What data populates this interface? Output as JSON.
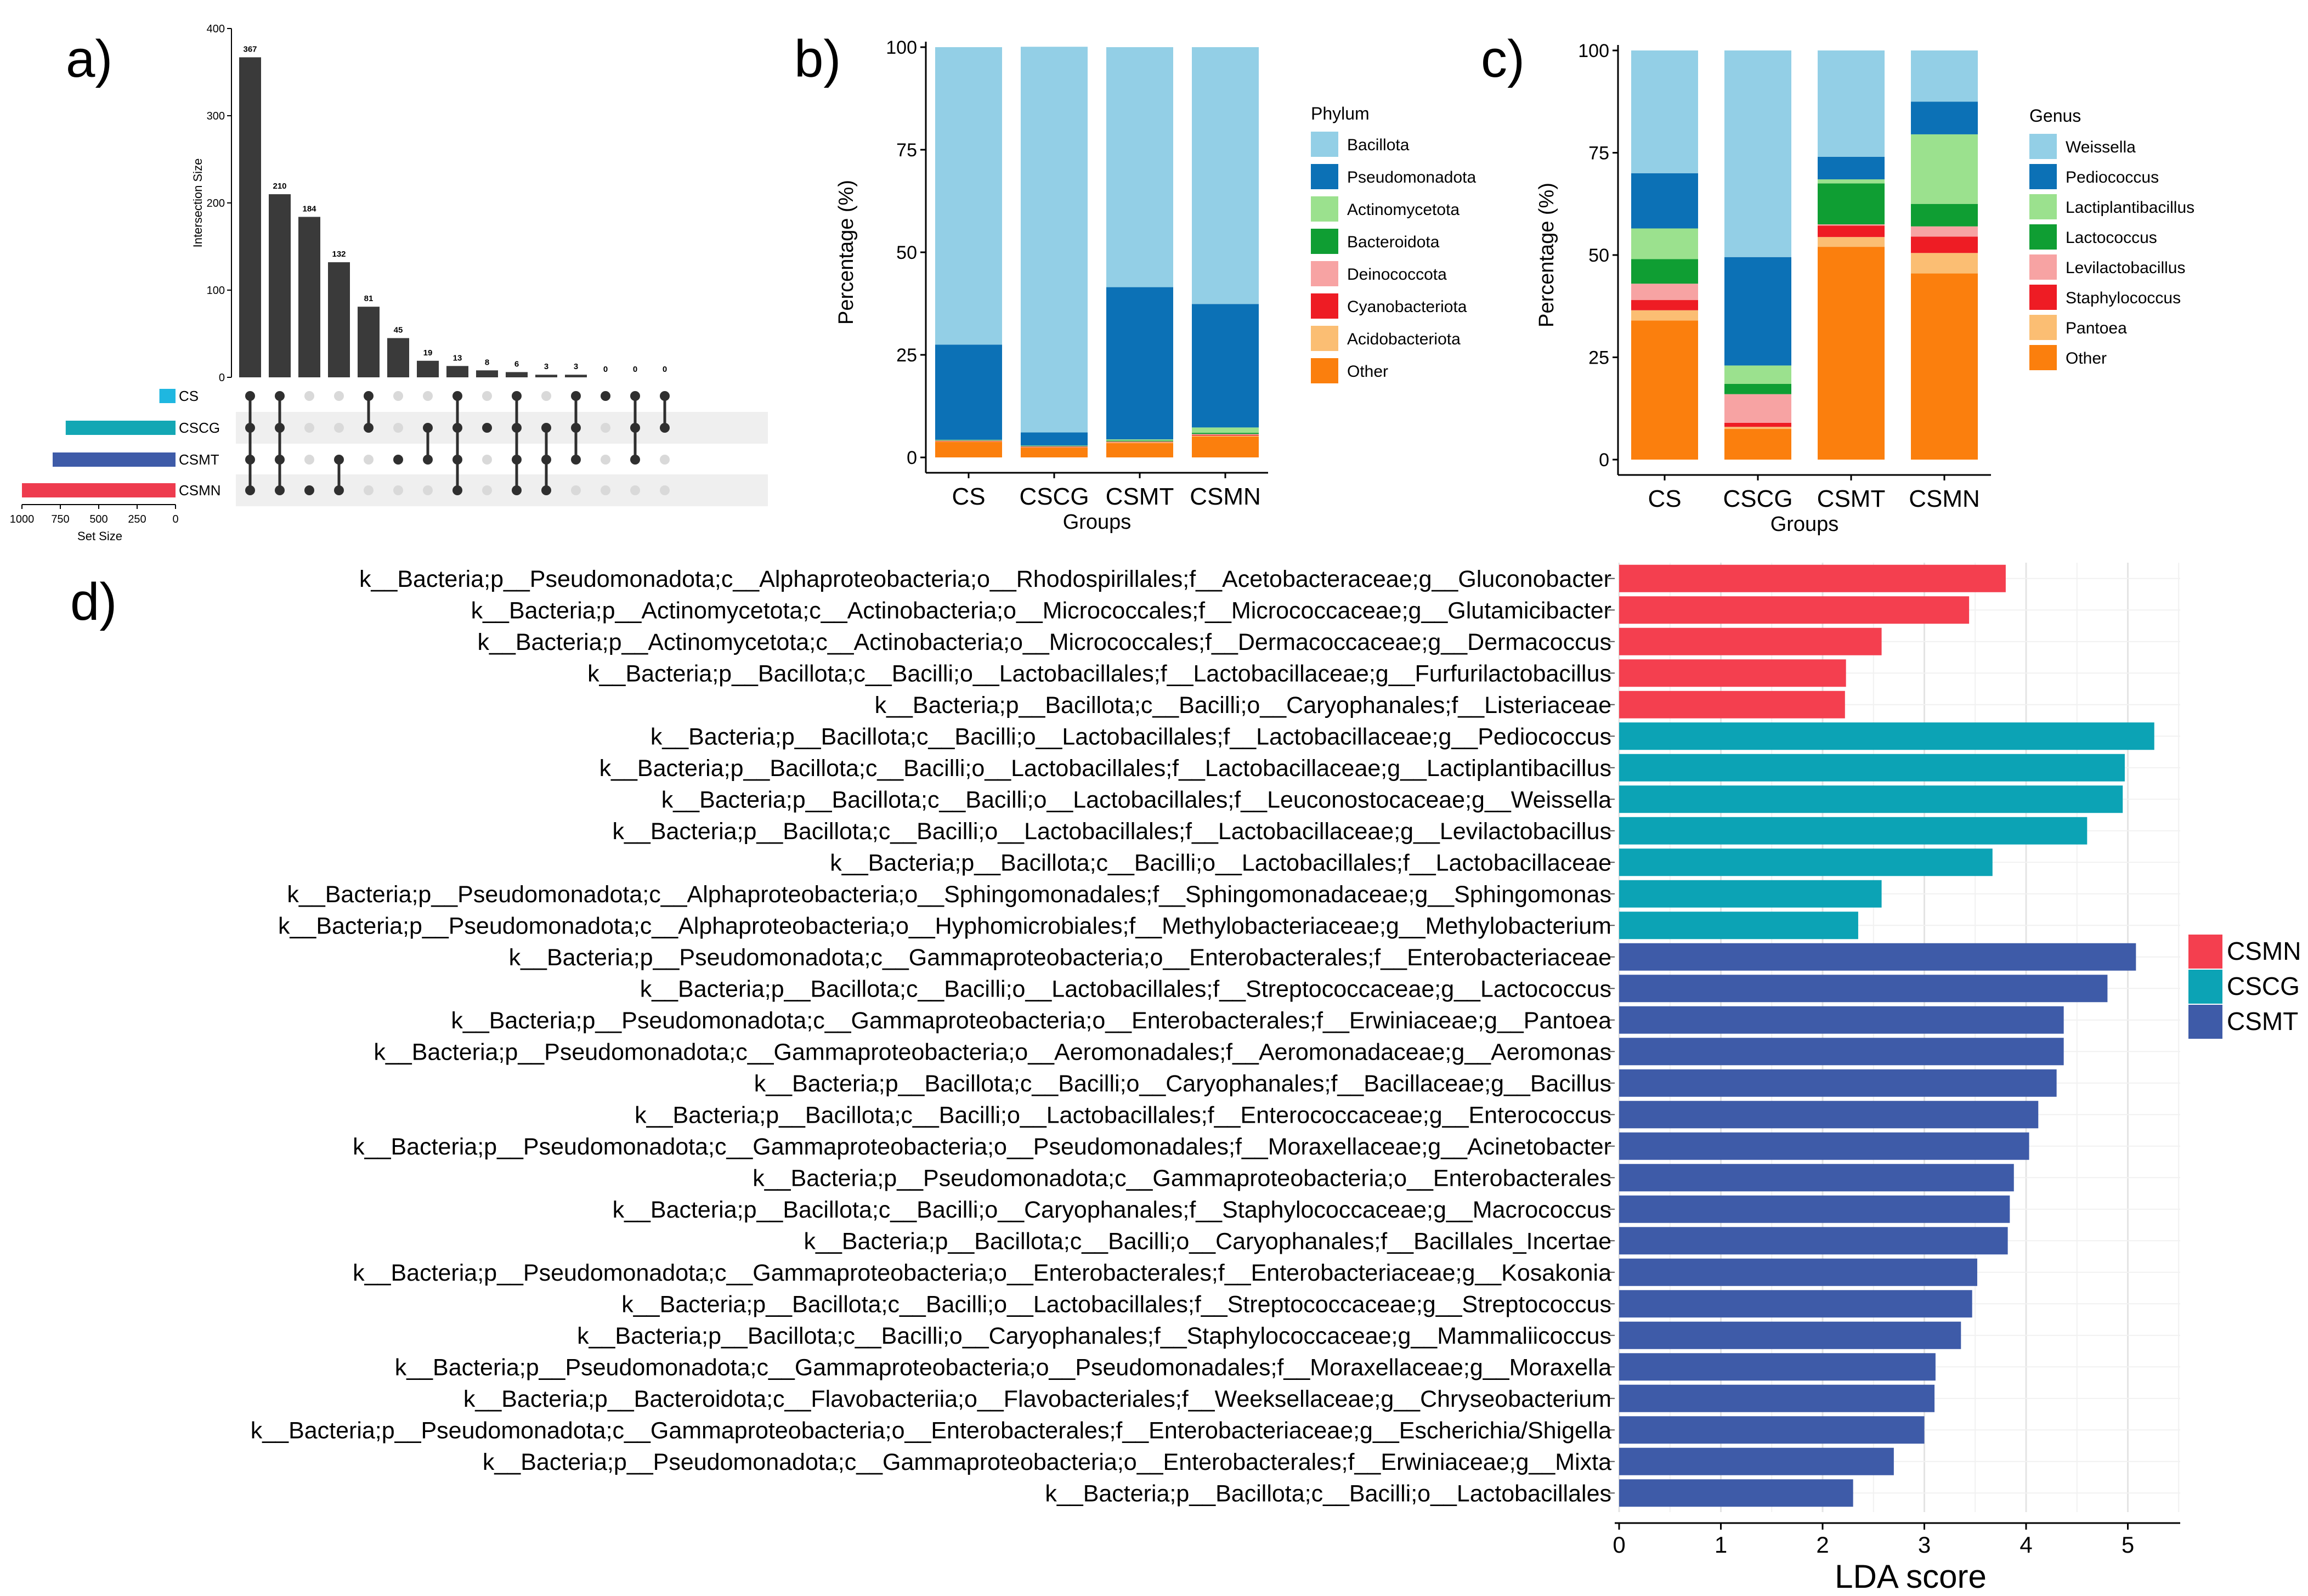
{
  "panels": {
    "a": "a)",
    "b": "b)",
    "c": "c)",
    "d": "d)"
  },
  "chart_data": [
    {
      "id": "a",
      "type": "bar",
      "subtype": "upset",
      "ylabel": "Intersection Size",
      "yticks": [
        0,
        100,
        200,
        300,
        400
      ],
      "ylim": [
        0,
        400
      ],
      "intersection_sizes": [
        367,
        210,
        184,
        132,
        81,
        45,
        19,
        13,
        8,
        6,
        3,
        3,
        0,
        0,
        0
      ],
      "sets": [
        {
          "name": "CS",
          "size": 105,
          "color": "#1fb7e0"
        },
        {
          "name": "CSCG",
          "size": 715,
          "color": "#13a7b4"
        },
        {
          "name": "CSMT",
          "size": 800,
          "color": "#3e5ba8"
        },
        {
          "name": "CSMN",
          "size": 1000,
          "color": "#ee3b4e"
        }
      ],
      "membership": [
        [
          0,
          1,
          2,
          3
        ],
        [
          0,
          1,
          2,
          3
        ],
        [
          3
        ],
        [
          2,
          3
        ],
        [
          0,
          1
        ],
        [
          2
        ],
        [
          1,
          2
        ],
        [
          0,
          1,
          2,
          3
        ],
        [
          1
        ],
        [
          0,
          1,
          2,
          3
        ],
        [
          1,
          2,
          3
        ],
        [
          0,
          1,
          2
        ],
        [
          0
        ],
        [
          0,
          1,
          2
        ],
        [
          0,
          1
        ]
      ],
      "set_size_label": "Set Size",
      "set_size_ticks": [
        1000,
        750,
        500,
        250,
        0
      ]
    },
    {
      "id": "b",
      "type": "bar",
      "subtype": "stacked-percent",
      "xlabel": "Groups",
      "ylabel": "Percentage (%)",
      "ylim": [
        0,
        100
      ],
      "yticks": [
        0,
        25,
        50,
        75,
        100
      ],
      "categories": [
        "CS",
        "CSCG",
        "CSMT",
        "CSMN"
      ],
      "legend_title": "Phylum",
      "series": [
        {
          "name": "Bacillota",
          "color": "#93cfe6",
          "values": [
            72.5,
            94.0,
            58.5,
            62.6
          ]
        },
        {
          "name": "Pseudomonadota",
          "color": "#0c71b6",
          "values": [
            23.2,
            3.2,
            37.1,
            30.1
          ]
        },
        {
          "name": "Actinomycetota",
          "color": "#9be18e",
          "values": [
            0.1,
            0.1,
            0.3,
            1.3
          ]
        },
        {
          "name": "Bacteroidota",
          "color": "#0f9e33",
          "values": [
            0.1,
            0.1,
            0.2,
            0.3
          ]
        },
        {
          "name": "Deinococcota",
          "color": "#f7a3a3",
          "values": [
            0.1,
            0.1,
            0.1,
            0.2
          ]
        },
        {
          "name": "Cyanobacteriota",
          "color": "#ee1c24",
          "values": [
            0.1,
            0.1,
            0.1,
            0.2
          ]
        },
        {
          "name": "Acidobacteriota",
          "color": "#fbbe73",
          "values": [
            0.1,
            0.1,
            0.2,
            0.2
          ]
        },
        {
          "name": "Other",
          "color": "#fb7f0d",
          "values": [
            3.8,
            2.4,
            3.5,
            5.1
          ]
        }
      ]
    },
    {
      "id": "c",
      "type": "bar",
      "subtype": "stacked-percent",
      "xlabel": "Groups",
      "ylabel": "Percentage (%)",
      "ylim": [
        0,
        100
      ],
      "yticks": [
        0,
        25,
        50,
        75,
        100
      ],
      "categories": [
        "CS",
        "CSCG",
        "CSMT",
        "CSMN"
      ],
      "legend_title": "Genus",
      "series": [
        {
          "name": "Weissella",
          "color": "#93cfe6",
          "values": [
            30,
            50.5,
            26,
            12.5
          ]
        },
        {
          "name": "Pediococcus",
          "color": "#0c71b6",
          "values": [
            13.5,
            26.5,
            5.5,
            8
          ]
        },
        {
          "name": "Lactiplantibacillus",
          "color": "#9be18e",
          "values": [
            7.5,
            4.5,
            1,
            17
          ]
        },
        {
          "name": "Lactococcus",
          "color": "#0f9e33",
          "values": [
            6,
            2.5,
            10,
            5.5
          ]
        },
        {
          "name": "Levilactobacillus",
          "color": "#f7a3a3",
          "values": [
            4,
            7,
            0.3,
            2.5
          ]
        },
        {
          "name": "Staphylococcus",
          "color": "#ee1c24",
          "values": [
            2.5,
            1,
            2.8,
            4
          ]
        },
        {
          "name": "Pantoea",
          "color": "#fbbe73",
          "values": [
            2.5,
            0.5,
            2.4,
            5
          ]
        },
        {
          "name": "Other",
          "color": "#fb7f0d",
          "values": [
            34,
            7.5,
            52,
            45.5
          ]
        }
      ]
    },
    {
      "id": "d",
      "type": "bar",
      "subtype": "horizontal-lefse",
      "xlabel": "LDA score",
      "xlim": [
        0,
        5.5
      ],
      "xticks": [
        0,
        1,
        2,
        3,
        4,
        5
      ],
      "legend": [
        {
          "name": "CSMN",
          "color": "#f43f4f"
        },
        {
          "name": "CSCG",
          "color": "#0ca3b5"
        },
        {
          "name": "CSMT",
          "color": "#3e5ba8"
        }
      ],
      "bars": [
        {
          "label": "k__Bacteria;p__Pseudomonadota;c__Alphaproteobacteria;o__Rhodospirillales;f__Acetobacteraceae;g__Gluconobacter",
          "value": 3.8,
          "group": "CSMN"
        },
        {
          "label": "k__Bacteria;p__Actinomycetota;c__Actinobacteria;o__Micrococcales;f__Micrococcaceae;g__Glutamicibacter",
          "value": 3.44,
          "group": "CSMN"
        },
        {
          "label": "k__Bacteria;p__Actinomycetota;c__Actinobacteria;o__Micrococcales;f__Dermacoccaceae;g__Dermacoccus",
          "value": 2.58,
          "group": "CSMN"
        },
        {
          "label": "k__Bacteria;p__Bacillota;c__Bacilli;o__Lactobacillales;f__Lactobacillaceae;g__Furfurilactobacillus",
          "value": 2.23,
          "group": "CSMN"
        },
        {
          "label": "k__Bacteria;p__Bacillota;c__Bacilli;o__Caryophanales;f__Listeriaceae",
          "value": 2.22,
          "group": "CSMN"
        },
        {
          "label": "k__Bacteria;p__Bacillota;c__Bacilli;o__Lactobacillales;f__Lactobacillaceae;g__Pediococcus",
          "value": 5.26,
          "group": "CSCG"
        },
        {
          "label": "k__Bacteria;p__Bacillota;c__Bacilli;o__Lactobacillales;f__Lactobacillaceae;g__Lactiplantibacillus",
          "value": 4.97,
          "group": "CSCG"
        },
        {
          "label": "k__Bacteria;p__Bacillota;c__Bacilli;o__Lactobacillales;f__Leuconostocaceae;g__Weissella",
          "value": 4.95,
          "group": "CSCG"
        },
        {
          "label": "k__Bacteria;p__Bacillota;c__Bacilli;o__Lactobacillales;f__Lactobacillaceae;g__Levilactobacillus",
          "value": 4.6,
          "group": "CSCG"
        },
        {
          "label": "k__Bacteria;p__Bacillota;c__Bacilli;o__Lactobacillales;f__Lactobacillaceae",
          "value": 3.67,
          "group": "CSCG"
        },
        {
          "label": "k__Bacteria;p__Pseudomonadota;c__Alphaproteobacteria;o__Sphingomonadales;f__Sphingomonadaceae;g__Sphingomonas",
          "value": 2.58,
          "group": "CSCG"
        },
        {
          "label": "k__Bacteria;p__Pseudomonadota;c__Alphaproteobacteria;o__Hyphomicrobiales;f__Methylobacteriaceae;g__Methylobacterium",
          "value": 2.35,
          "group": "CSCG"
        },
        {
          "label": "k__Bacteria;p__Pseudomonadota;c__Gammaproteobacteria;o__Enterobacterales;f__Enterobacteriaceae",
          "value": 5.08,
          "group": "CSMT"
        },
        {
          "label": "k__Bacteria;p__Bacillota;c__Bacilli;o__Lactobacillales;f__Streptococcaceae;g__Lactococcus",
          "value": 4.8,
          "group": "CSMT"
        },
        {
          "label": "k__Bacteria;p__Pseudomonadota;c__Gammaproteobacteria;o__Enterobacterales;f__Erwiniaceae;g__Pantoea",
          "value": 4.37,
          "group": "CSMT"
        },
        {
          "label": "k__Bacteria;p__Pseudomonadota;c__Gammaproteobacteria;o__Aeromonadales;f__Aeromonadaceae;g__Aeromonas",
          "value": 4.37,
          "group": "CSMT"
        },
        {
          "label": "k__Bacteria;p__Bacillota;c__Bacilli;o__Caryophanales;f__Bacillaceae;g__Bacillus",
          "value": 4.3,
          "group": "CSMT"
        },
        {
          "label": "k__Bacteria;p__Bacillota;c__Bacilli;o__Lactobacillales;f__Enterococcaceae;g__Enterococcus",
          "value": 4.12,
          "group": "CSMT"
        },
        {
          "label": "k__Bacteria;p__Pseudomonadota;c__Gammaproteobacteria;o__Pseudomonadales;f__Moraxellaceae;g__Acinetobacter",
          "value": 4.03,
          "group": "CSMT"
        },
        {
          "label": "k__Bacteria;p__Pseudomonadota;c__Gammaproteobacteria;o__Enterobacterales",
          "value": 3.88,
          "group": "CSMT"
        },
        {
          "label": "k__Bacteria;p__Bacillota;c__Bacilli;o__Caryophanales;f__Staphylococcaceae;g__Macrococcus",
          "value": 3.84,
          "group": "CSMT"
        },
        {
          "label": "k__Bacteria;p__Bacillota;c__Bacilli;o__Caryophanales;f__Bacillales_Incertae",
          "value": 3.82,
          "group": "CSMT"
        },
        {
          "label": "k__Bacteria;p__Pseudomonadota;c__Gammaproteobacteria;o__Enterobacterales;f__Enterobacteriaceae;g__Kosakonia",
          "value": 3.52,
          "group": "CSMT"
        },
        {
          "label": "k__Bacteria;p__Bacillota;c__Bacilli;o__Lactobacillales;f__Streptococcaceae;g__Streptococcus",
          "value": 3.47,
          "group": "CSMT"
        },
        {
          "label": "k__Bacteria;p__Bacillota;c__Bacilli;o__Caryophanales;f__Staphylococcaceae;g__Mammaliicoccus",
          "value": 3.36,
          "group": "CSMT"
        },
        {
          "label": "k__Bacteria;p__Pseudomonadota;c__Gammaproteobacteria;o__Pseudomonadales;f__Moraxellaceae;g__Moraxella",
          "value": 3.11,
          "group": "CSMT"
        },
        {
          "label": "k__Bacteria;p__Bacteroidota;c__Flavobacteriia;o__Flavobacteriales;f__Weeksellaceae;g__Chryseobacterium",
          "value": 3.1,
          "group": "CSMT"
        },
        {
          "label": "k__Bacteria;p__Pseudomonadota;c__Gammaproteobacteria;o__Enterobacterales;f__Enterobacteriaceae;g__Escherichia/Shigella",
          "value": 3.0,
          "group": "CSMT"
        },
        {
          "label": "k__Bacteria;p__Pseudomonadota;c__Gammaproteobacteria;o__Enterobacterales;f__Erwiniaceae;g__Mixta",
          "value": 2.7,
          "group": "CSMT"
        },
        {
          "label": "k__Bacteria;p__Bacillota;c__Bacilli;o__Lactobacillales",
          "value": 2.3,
          "group": "CSMT"
        }
      ]
    }
  ]
}
